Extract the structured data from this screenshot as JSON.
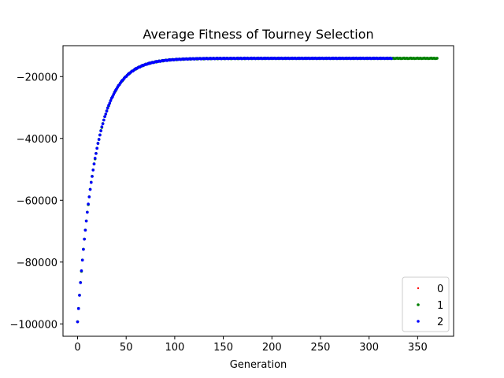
{
  "chart_data": {
    "type": "scatter",
    "title": "Average Fitness of Tourney Selection",
    "xlabel": "Generation",
    "ylabel": "",
    "xlim": [
      -15,
      387
    ],
    "ylim": [
      -104000,
      -10000
    ],
    "xticks": [
      0,
      50,
      100,
      150,
      200,
      250,
      300,
      350
    ],
    "yticks": [
      -100000,
      -80000,
      -60000,
      -40000,
      -20000
    ],
    "ytick_labels": [
      "−100000",
      "−80000",
      "−60000",
      "−40000",
      "−20000"
    ],
    "legend_position": "lower-right",
    "grid": false,
    "model": {
      "asymptote": -14100,
      "amplitude": 85300,
      "decay": 18.6
    },
    "series": [
      {
        "name": "0",
        "color": "#ff0000",
        "x_start": 0,
        "x_end": 25,
        "marker_size": 1.2
      },
      {
        "name": "1",
        "color": "#008000",
        "x_start": 0,
        "x_end": 370,
        "marker_size": 1.8
      },
      {
        "name": "2",
        "color": "#0000ff",
        "x_start": 0,
        "x_end": 323,
        "marker_size": 1.8
      }
    ]
  }
}
